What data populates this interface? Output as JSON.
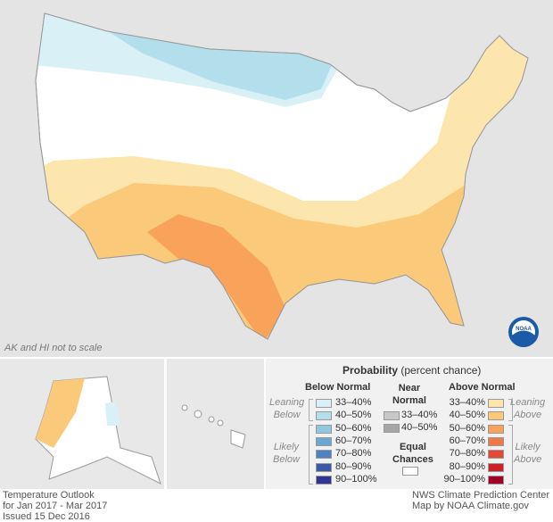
{
  "map_note": "AK and HI not to scale",
  "footer_left": [
    "Temperature Outlook",
    "for Jan 2017 - Mar 2017",
    "Issued 15 Dec 2016"
  ],
  "footer_right": [
    "NWS Climate Prediction Center",
    "Map by NOAA Climate.gov"
  ],
  "logo_text": "NOAA",
  "legend": {
    "title": "Probability",
    "subtitle": "(percent chance)",
    "below": {
      "heading": "Below Normal",
      "leaning": [
        "Leaning",
        "Below"
      ],
      "likely": [
        "Likely",
        "Below"
      ],
      "items": [
        {
          "label": "33–40%",
          "color": "#d9f0f7"
        },
        {
          "label": "40–50%",
          "color": "#b3dfec"
        },
        {
          "label": "50–60%",
          "color": "#8ec7e0"
        },
        {
          "label": "60–70%",
          "color": "#6aa8d1"
        },
        {
          "label": "70–80%",
          "color": "#4d82c0"
        },
        {
          "label": "80–90%",
          "color": "#3a5aa8"
        },
        {
          "label": "90–100%",
          "color": "#2e3592"
        }
      ]
    },
    "near": {
      "heading": [
        "Near",
        "Normal"
      ],
      "items": [
        {
          "label": "33–40%",
          "color": "#c8c8c8"
        },
        {
          "label": "40–50%",
          "color": "#a6a6a6"
        }
      ]
    },
    "equal": {
      "heading": [
        "Equal",
        "Chances"
      ],
      "color": "#ffffff"
    },
    "above": {
      "heading": "Above Normal",
      "leaning": [
        "Leaning",
        "Above"
      ],
      "likely": [
        "Likely",
        "Above"
      ],
      "items": [
        {
          "label": "33–40%",
          "color": "#fde6ad"
        },
        {
          "label": "40–50%",
          "color": "#fbc97a"
        },
        {
          "label": "50–60%",
          "color": "#f9a35a"
        },
        {
          "label": "60–70%",
          "color": "#f07848"
        },
        {
          "label": "70–80%",
          "color": "#e34a33"
        },
        {
          "label": "80–90%",
          "color": "#c8222a"
        },
        {
          "label": "90–100%",
          "color": "#9e0125"
        }
      ]
    }
  }
}
